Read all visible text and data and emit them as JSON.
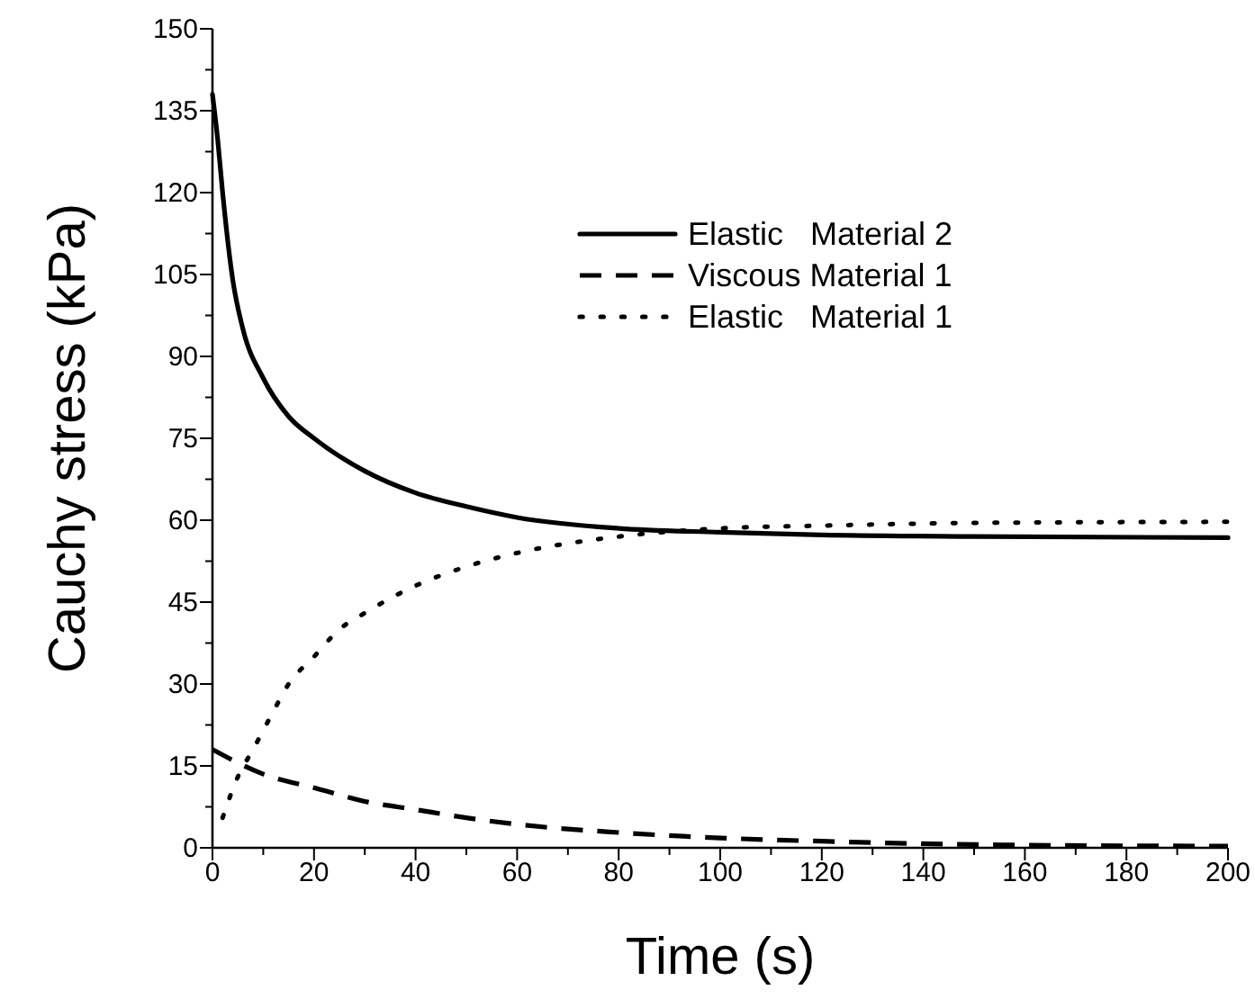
{
  "chart_data": {
    "type": "line",
    "xlabel": "Time (s)",
    "ylabel": "Cauchy stress (kPa)",
    "xlim": [
      0,
      200
    ],
    "ylim": [
      0,
      150
    ],
    "xticks": [
      0,
      {
        "value": 10,
        "label": null
      },
      20,
      {
        "value": 30,
        "label": null
      },
      40,
      {
        "value": 50,
        "label": null
      },
      60,
      {
        "value": 70,
        "label": null
      },
      80,
      {
        "value": 90,
        "label": null
      },
      100,
      {
        "value": 110,
        "label": null
      },
      120,
      {
        "value": 130,
        "label": null
      },
      140,
      {
        "value": 150,
        "label": null
      },
      160,
      {
        "value": 170,
        "label": null
      },
      180,
      {
        "value": 190,
        "label": null
      },
      200
    ],
    "yticks": [
      0,
      {
        "value": 7.5,
        "label": null
      },
      15,
      {
        "value": 22.5,
        "label": null
      },
      30,
      {
        "value": 37.5,
        "label": null
      },
      45,
      {
        "value": 52.5,
        "label": null
      },
      60,
      {
        "value": 67.5,
        "label": null
      },
      75,
      {
        "value": 82.5,
        "label": null
      },
      90,
      {
        "value": 97.5,
        "label": null
      },
      105,
      {
        "value": 112.5,
        "label": null
      },
      120,
      {
        "value": 127.5,
        "label": null
      },
      135,
      {
        "value": 142.5,
        "label": null
      },
      150
    ],
    "legend": "top right",
    "grid": false,
    "marker": "none",
    "series": [
      {
        "name": "Elastic   Material 2",
        "color": "#000000",
        "line_style": "solid",
        "x": [
          0,
          1,
          2,
          4,
          6,
          10,
          15,
          20,
          30,
          40,
          50,
          60,
          80,
          100,
          120,
          150,
          200
        ],
        "values": [
          138,
          130,
          120,
          104,
          95,
          86,
          79,
          75,
          69,
          65,
          62.5,
          60.5,
          58.5,
          57.8,
          57.3,
          57,
          56.8
        ]
      },
      {
        "name": "Viscous Material 1",
        "color": "#000000",
        "line_style": "dashed",
        "x": [
          0,
          10,
          20,
          30,
          40,
          50,
          60,
          80,
          100,
          120,
          150,
          200
        ],
        "values": [
          18,
          13.5,
          11,
          8.5,
          7,
          5.5,
          4.3,
          2.8,
          1.8,
          1.2,
          0.6,
          0.3
        ]
      },
      {
        "name": "Elastic   Material 1",
        "color": "#000000",
        "line_style": "dotted",
        "x": [
          2,
          5,
          8,
          12,
          15,
          20,
          25,
          30,
          40,
          50,
          60,
          80,
          100,
          120,
          150,
          200
        ],
        "values": [
          5.5,
          13,
          18,
          25,
          30,
          35,
          40,
          43,
          48,
          51.5,
          54,
          57,
          58.5,
          59,
          59.5,
          59.7
        ]
      }
    ]
  }
}
